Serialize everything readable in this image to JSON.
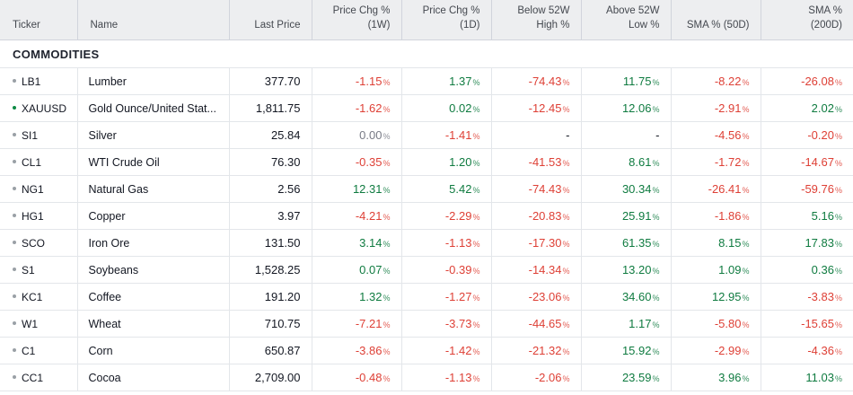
{
  "colors": {
    "up": "#0f7b40",
    "down": "#de4036",
    "zero": "#787b86",
    "dash": "#131722",
    "header_bg": "#edeef0",
    "dot_gray": "#9aa0a6",
    "dot_green": "#0e8a45"
  },
  "table": {
    "section": "COMMODITIES",
    "columns": [
      {
        "id": "ticker",
        "label": "Ticker",
        "align": "left"
      },
      {
        "id": "name",
        "label": "Name",
        "align": "left"
      },
      {
        "id": "last-price",
        "label": "Last Price",
        "align": "right"
      },
      {
        "id": "chg-1w",
        "label": "Price Chg %\n(1W)",
        "align": "right"
      },
      {
        "id": "chg-1d",
        "label": "Price Chg %\n(1D)",
        "align": "right"
      },
      {
        "id": "below-52w-high",
        "label": "Below 52W\nHigh %",
        "align": "right"
      },
      {
        "id": "above-52w-low",
        "label": "Above 52W\nLow %",
        "align": "right"
      },
      {
        "id": "sma-50",
        "label": "SMA % (50D)",
        "align": "right"
      },
      {
        "id": "sma-200",
        "label": "SMA %\n(200D)",
        "align": "right"
      }
    ],
    "rows": [
      {
        "ticker": "LB1",
        "dot": "gray",
        "name": "Lumber",
        "last": "377.70",
        "cells": [
          {
            "v": "-1.15",
            "c": "down"
          },
          {
            "v": "1.37",
            "c": "up"
          },
          {
            "v": "-74.43",
            "c": "down"
          },
          {
            "v": "11.75",
            "c": "up"
          },
          {
            "v": "-8.22",
            "c": "down"
          },
          {
            "v": "-26.08",
            "c": "down"
          }
        ]
      },
      {
        "ticker": "XAUUSD",
        "dot": "green",
        "name": "Gold Ounce/United Stat...",
        "last": "1,811.75",
        "cells": [
          {
            "v": "-1.62",
            "c": "down"
          },
          {
            "v": "0.02",
            "c": "up"
          },
          {
            "v": "-12.45",
            "c": "down"
          },
          {
            "v": "12.06",
            "c": "up"
          },
          {
            "v": "-2.91",
            "c": "down"
          },
          {
            "v": "2.02",
            "c": "up"
          }
        ]
      },
      {
        "ticker": "SI1",
        "dot": "gray",
        "name": "Silver",
        "last": "25.84",
        "cells": [
          {
            "v": "0.00",
            "c": "zero"
          },
          {
            "v": "-1.41",
            "c": "down"
          },
          {
            "v": "-",
            "c": "dash",
            "pct": false
          },
          {
            "v": "-",
            "c": "dash",
            "pct": false
          },
          {
            "v": "-4.56",
            "c": "down"
          },
          {
            "v": "-0.20",
            "c": "down"
          }
        ]
      },
      {
        "ticker": "CL1",
        "dot": "gray",
        "name": "WTI Crude Oil",
        "last": "76.30",
        "cells": [
          {
            "v": "-0.35",
            "c": "down"
          },
          {
            "v": "1.20",
            "c": "up"
          },
          {
            "v": "-41.53",
            "c": "down"
          },
          {
            "v": "8.61",
            "c": "up"
          },
          {
            "v": "-1.72",
            "c": "down"
          },
          {
            "v": "-14.67",
            "c": "down"
          }
        ]
      },
      {
        "ticker": "NG1",
        "dot": "gray",
        "name": "Natural Gas",
        "last": "2.56",
        "cells": [
          {
            "v": "12.31",
            "c": "up"
          },
          {
            "v": "5.42",
            "c": "up"
          },
          {
            "v": "-74.43",
            "c": "down"
          },
          {
            "v": "30.34",
            "c": "up"
          },
          {
            "v": "-26.41",
            "c": "down"
          },
          {
            "v": "-59.76",
            "c": "down"
          }
        ]
      },
      {
        "ticker": "HG1",
        "dot": "gray",
        "name": "Copper",
        "last": "3.97",
        "cells": [
          {
            "v": "-4.21",
            "c": "down"
          },
          {
            "v": "-2.29",
            "c": "down"
          },
          {
            "v": "-20.83",
            "c": "down"
          },
          {
            "v": "25.91",
            "c": "up"
          },
          {
            "v": "-1.86",
            "c": "down"
          },
          {
            "v": "5.16",
            "c": "up"
          }
        ]
      },
      {
        "ticker": "SCO",
        "dot": "gray",
        "name": "Iron Ore",
        "last": "131.50",
        "cells": [
          {
            "v": "3.14",
            "c": "up"
          },
          {
            "v": "-1.13",
            "c": "down"
          },
          {
            "v": "-17.30",
            "c": "down"
          },
          {
            "v": "61.35",
            "c": "up"
          },
          {
            "v": "8.15",
            "c": "up"
          },
          {
            "v": "17.83",
            "c": "up"
          }
        ]
      },
      {
        "ticker": "S1",
        "dot": "gray",
        "name": "Soybeans",
        "last": "1,528.25",
        "cells": [
          {
            "v": "0.07",
            "c": "up"
          },
          {
            "v": "-0.39",
            "c": "down"
          },
          {
            "v": "-14.34",
            "c": "down"
          },
          {
            "v": "13.20",
            "c": "up"
          },
          {
            "v": "1.09",
            "c": "up"
          },
          {
            "v": "0.36",
            "c": "up"
          }
        ]
      },
      {
        "ticker": "KC1",
        "dot": "gray",
        "name": "Coffee",
        "last": "191.20",
        "cells": [
          {
            "v": "1.32",
            "c": "up"
          },
          {
            "v": "-1.27",
            "c": "down"
          },
          {
            "v": "-23.06",
            "c": "down"
          },
          {
            "v": "34.60",
            "c": "up"
          },
          {
            "v": "12.95",
            "c": "up"
          },
          {
            "v": "-3.83",
            "c": "down"
          }
        ]
      },
      {
        "ticker": "W1",
        "dot": "gray",
        "name": "Wheat",
        "last": "710.75",
        "cells": [
          {
            "v": "-7.21",
            "c": "down"
          },
          {
            "v": "-3.73",
            "c": "down"
          },
          {
            "v": "-44.65",
            "c": "down"
          },
          {
            "v": "1.17",
            "c": "up"
          },
          {
            "v": "-5.80",
            "c": "down"
          },
          {
            "v": "-15.65",
            "c": "down"
          }
        ]
      },
      {
        "ticker": "C1",
        "dot": "gray",
        "name": "Corn",
        "last": "650.87",
        "cells": [
          {
            "v": "-3.86",
            "c": "down"
          },
          {
            "v": "-1.42",
            "c": "down"
          },
          {
            "v": "-21.32",
            "c": "down"
          },
          {
            "v": "15.92",
            "c": "up"
          },
          {
            "v": "-2.99",
            "c": "down"
          },
          {
            "v": "-4.36",
            "c": "down"
          }
        ]
      },
      {
        "ticker": "CC1",
        "dot": "gray",
        "name": "Cocoa",
        "last": "2,709.00",
        "cells": [
          {
            "v": "-0.48",
            "c": "down"
          },
          {
            "v": "-1.13",
            "c": "down"
          },
          {
            "v": "-2.06",
            "c": "down"
          },
          {
            "v": "23.59",
            "c": "up"
          },
          {
            "v": "3.96",
            "c": "up"
          },
          {
            "v": "11.03",
            "c": "up"
          }
        ]
      }
    ]
  }
}
